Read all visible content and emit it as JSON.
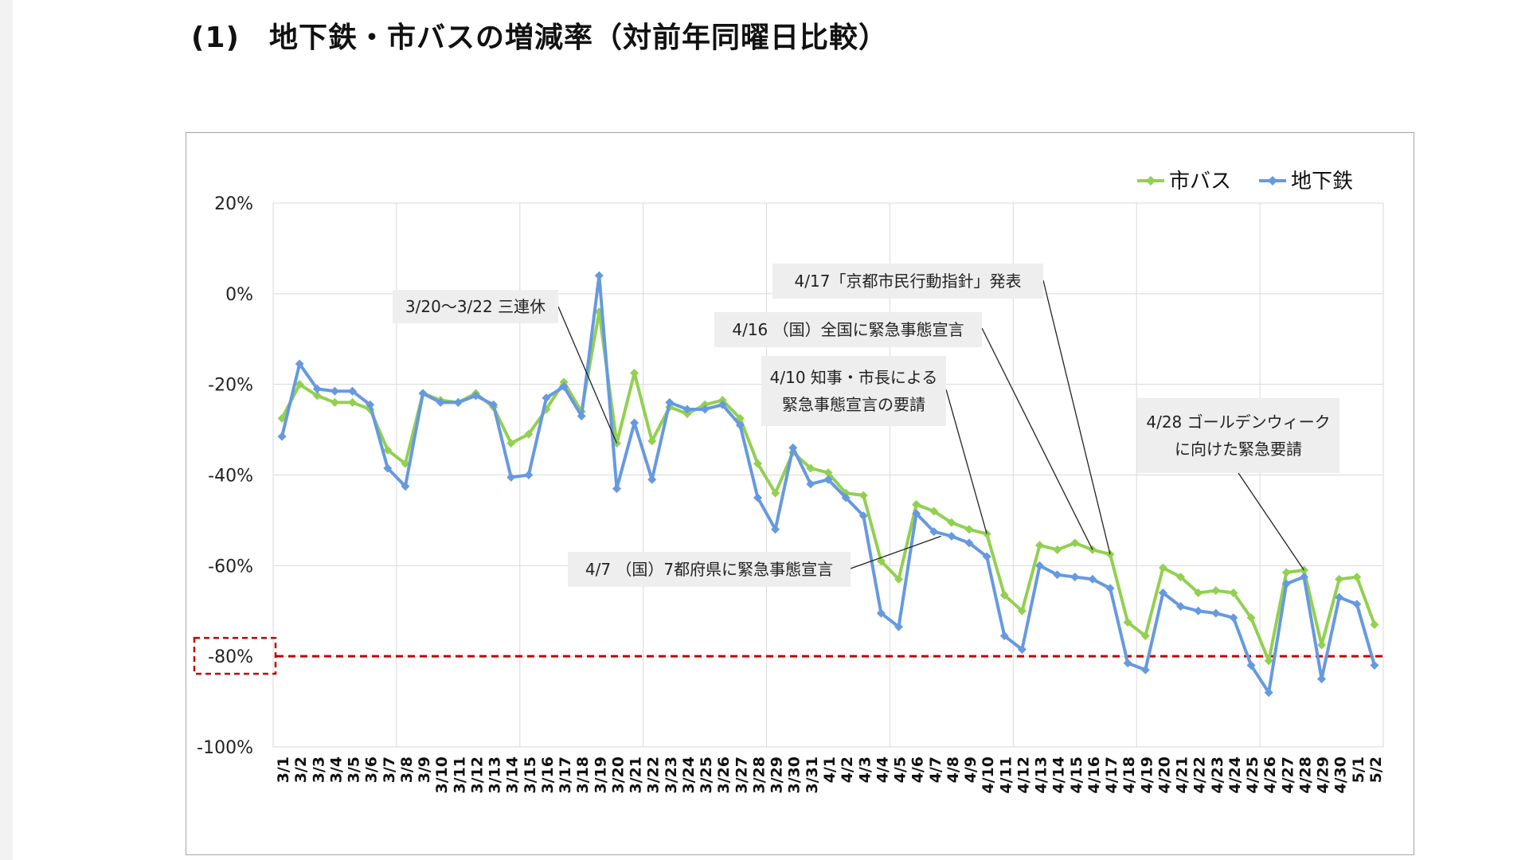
{
  "page": {
    "title": "(1)　地下鉄・市バスの増減率（対前年同曜日比較）"
  },
  "colors": {
    "bus": "#92d050",
    "subway": "#6699e0",
    "threshold": "#c00000",
    "callout_bg": "#eeeeee",
    "grid": "#d9d9d9"
  },
  "chart_data": {
    "type": "line",
    "title": "",
    "xlabel": "",
    "ylabel": "",
    "ylim": [
      -1.0,
      0.2
    ],
    "yticks": [
      "20%",
      "0%",
      "-20%",
      "-40%",
      "-60%",
      "-80%",
      "-100%"
    ],
    "threshold": {
      "value": -0.8,
      "label": "-80%"
    },
    "legend": {
      "position": "top-right",
      "entries": [
        "市バス",
        "地下鉄"
      ]
    },
    "categories": [
      "3/1",
      "3/2",
      "3/3",
      "3/4",
      "3/5",
      "3/6",
      "3/7",
      "3/8",
      "3/9",
      "3/10",
      "3/11",
      "3/12",
      "3/13",
      "3/14",
      "3/15",
      "3/16",
      "3/17",
      "3/18",
      "3/19",
      "3/20",
      "3/21",
      "3/22",
      "3/23",
      "3/24",
      "3/25",
      "3/26",
      "3/27",
      "3/28",
      "3/29",
      "3/30",
      "3/31",
      "4/1",
      "4/2",
      "4/3",
      "4/4",
      "4/5",
      "4/6",
      "4/7",
      "4/8",
      "4/9",
      "4/10",
      "4/11",
      "4/12",
      "4/13",
      "4/14",
      "4/15",
      "4/16",
      "4/17",
      "4/18",
      "4/19",
      "4/20",
      "4/21",
      "4/22",
      "4/23",
      "4/24",
      "4/25",
      "4/26",
      "4/27",
      "4/28",
      "4/29",
      "4/30",
      "5/1",
      "5/2"
    ],
    "series": [
      {
        "name": "市バス",
        "color": "#92d050",
        "values": [
          -0.275,
          -0.2,
          -0.225,
          -0.24,
          -0.24,
          -0.255,
          -0.345,
          -0.375,
          -0.22,
          -0.235,
          -0.24,
          -0.22,
          -0.25,
          -0.33,
          -0.31,
          -0.255,
          -0.195,
          -0.26,
          -0.04,
          -0.33,
          -0.175,
          -0.325,
          -0.25,
          -0.265,
          -0.245,
          -0.235,
          -0.275,
          -0.375,
          -0.44,
          -0.35,
          -0.385,
          -0.395,
          -0.44,
          -0.445,
          -0.59,
          -0.63,
          -0.465,
          -0.48,
          -0.505,
          -0.52,
          -0.53,
          -0.665,
          -0.7,
          -0.555,
          -0.565,
          -0.55,
          -0.565,
          -0.575,
          -0.725,
          -0.755,
          -0.605,
          -0.625,
          -0.66,
          -0.655,
          -0.66,
          -0.715,
          -0.81,
          -0.615,
          -0.61,
          -0.775,
          -0.63,
          -0.625,
          -0.73
        ]
      },
      {
        "name": "地下鉄",
        "color": "#6699e0",
        "values": [
          -0.315,
          -0.155,
          -0.21,
          -0.215,
          -0.215,
          -0.245,
          -0.385,
          -0.425,
          -0.22,
          -0.24,
          -0.24,
          -0.225,
          -0.245,
          -0.405,
          -0.4,
          -0.23,
          -0.205,
          -0.27,
          0.04,
          -0.43,
          -0.285,
          -0.41,
          -0.24,
          -0.255,
          -0.255,
          -0.245,
          -0.29,
          -0.45,
          -0.52,
          -0.34,
          -0.42,
          -0.41,
          -0.45,
          -0.49,
          -0.705,
          -0.735,
          -0.485,
          -0.525,
          -0.535,
          -0.55,
          -0.58,
          -0.755,
          -0.785,
          -0.6,
          -0.62,
          -0.625,
          -0.63,
          -0.65,
          -0.815,
          -0.83,
          -0.66,
          -0.69,
          -0.7,
          -0.705,
          -0.715,
          -0.82,
          -0.88,
          -0.64,
          -0.625,
          -0.85,
          -0.67,
          -0.685,
          -0.82
        ]
      }
    ],
    "annotations": [
      {
        "text": "3/20〜3/22 三連休",
        "target": "3/20"
      },
      {
        "text": "4/17「京都市民行動指針」発表",
        "target": "4/17"
      },
      {
        "text": "4/16 （国）全国に緊急事態宣言",
        "target": "4/16"
      },
      {
        "text": "4/10 知事・市長による\n緊急事態宣言の要請",
        "target": "4/10"
      },
      {
        "text": "4/7 （国）7都府県に緊急事態宣言",
        "target": "4/7"
      },
      {
        "text": "4/28 ゴールデンウィーク\nに向けた緊急要請",
        "target": "4/28"
      }
    ]
  }
}
